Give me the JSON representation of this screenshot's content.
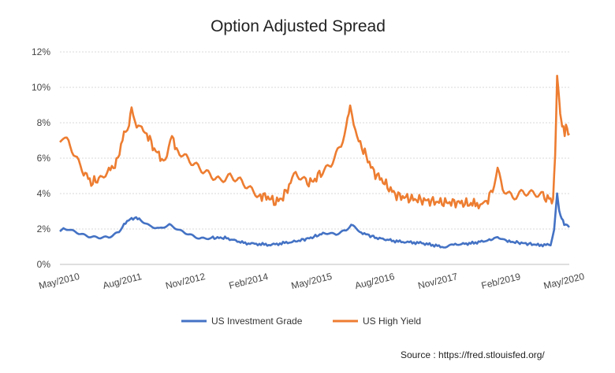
{
  "chart_data": {
    "type": "line",
    "title": "Option Adjusted Spread",
    "xlabel": "",
    "ylabel": "",
    "x_range": [
      2010.33,
      2020.42
    ],
    "ylim": [
      0,
      12
    ],
    "y_ticks": [
      0,
      2,
      4,
      6,
      8,
      10,
      12
    ],
    "y_tick_labels": [
      "0%",
      "2%",
      "4%",
      "6%",
      "8%",
      "10%",
      "12%"
    ],
    "x_ticks": [
      2010.33,
      2011.58,
      2012.83,
      2014.08,
      2015.33,
      2016.58,
      2017.83,
      2019.08,
      2020.33
    ],
    "x_tick_labels": [
      "May/2010",
      "Aug/2011",
      "Nov/2012",
      "Feb/2014",
      "May/2015",
      "Aug/2016",
      "Nov/2017",
      "Feb/2019",
      "May/2020"
    ],
    "grid": true,
    "legend_position": "bottom",
    "source_text": "Source : https://fred.stlouisfed.org/",
    "series": [
      {
        "name": "US Investment Grade",
        "color": "#4472C4",
        "x": [
          2010.33,
          2010.4,
          2010.5,
          2010.7,
          2010.9,
          2011.1,
          2011.3,
          2011.5,
          2011.6,
          2011.75,
          2011.9,
          2012.0,
          2012.1,
          2012.3,
          2012.5,
          2012.7,
          2012.9,
          2013.1,
          2013.3,
          2013.6,
          2014.0,
          2014.5,
          2015.0,
          2015.3,
          2015.6,
          2015.8,
          2016.0,
          2016.1,
          2016.3,
          2016.6,
          2017.0,
          2017.5,
          2017.9,
          2018.1,
          2018.5,
          2018.9,
          2019.0,
          2019.2,
          2019.5,
          2019.8,
          2020.05,
          2020.12,
          2020.18,
          2020.22,
          2020.27,
          2020.32,
          2020.38,
          2020.42
        ],
        "y": [
          1.9,
          2.0,
          2.0,
          1.8,
          1.6,
          1.5,
          1.5,
          1.8,
          2.3,
          2.6,
          2.6,
          2.4,
          2.2,
          2.0,
          2.2,
          1.9,
          1.7,
          1.5,
          1.5,
          1.5,
          1.2,
          1.1,
          1.3,
          1.5,
          1.8,
          1.7,
          1.9,
          2.2,
          1.8,
          1.5,
          1.3,
          1.2,
          1.0,
          1.1,
          1.2,
          1.4,
          1.6,
          1.3,
          1.2,
          1.1,
          1.1,
          2.0,
          4.0,
          3.0,
          2.6,
          2.3,
          2.2,
          2.1
        ]
      },
      {
        "name": "US High Yield",
        "color": "#ED7D31",
        "x": [
          2010.33,
          2010.4,
          2010.5,
          2010.6,
          2010.8,
          2010.95,
          2011.1,
          2011.3,
          2011.45,
          2011.6,
          2011.7,
          2011.75,
          2011.85,
          2011.95,
          2012.05,
          2012.2,
          2012.35,
          2012.45,
          2012.55,
          2012.7,
          2012.9,
          2013.1,
          2013.3,
          2013.5,
          2013.7,
          2013.9,
          2014.1,
          2014.3,
          2014.45,
          2014.6,
          2014.75,
          2014.9,
          2015.0,
          2015.2,
          2015.35,
          2015.5,
          2015.7,
          2015.9,
          2016.0,
          2016.08,
          2016.15,
          2016.25,
          2016.4,
          2016.55,
          2016.7,
          2016.85,
          2017.0,
          2017.3,
          2017.6,
          2017.9,
          2018.2,
          2018.5,
          2018.75,
          2018.9,
          2019.0,
          2019.1,
          2019.3,
          2019.5,
          2019.7,
          2019.9,
          2020.05,
          2020.1,
          2020.14,
          2020.18,
          2020.21,
          2020.24,
          2020.28,
          2020.33,
          2020.38,
          2020.42
        ],
        "y": [
          6.8,
          7.1,
          6.8,
          6.3,
          5.3,
          4.6,
          4.8,
          5.3,
          5.7,
          7.4,
          7.8,
          9.0,
          7.6,
          8.0,
          7.4,
          6.5,
          6.0,
          6.1,
          7.1,
          6.2,
          5.8,
          5.5,
          5.2,
          4.8,
          4.9,
          4.6,
          4.2,
          3.9,
          3.8,
          3.5,
          3.8,
          4.6,
          5.0,
          4.6,
          4.7,
          5.2,
          5.8,
          6.8,
          7.7,
          8.8,
          7.6,
          7.0,
          6.1,
          5.2,
          4.8,
          4.3,
          3.9,
          3.7,
          3.6,
          3.5,
          3.5,
          3.4,
          3.4,
          4.2,
          5.4,
          4.4,
          3.9,
          4.1,
          3.9,
          3.8,
          3.7,
          3.5,
          6.0,
          10.9,
          9.5,
          8.5,
          7.8,
          7.5,
          7.8,
          7.4
        ]
      }
    ]
  }
}
